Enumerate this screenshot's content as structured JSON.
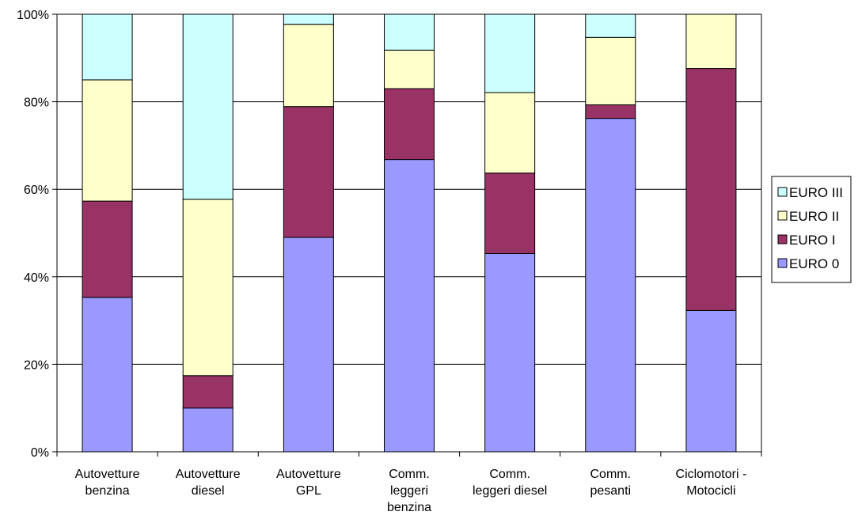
{
  "chart_data": {
    "type": "bar",
    "stacked": true,
    "percent": true,
    "categories": [
      [
        "Autovetture",
        "benzina"
      ],
      [
        "Autovetture",
        "diesel"
      ],
      [
        "Autovetture",
        "GPL"
      ],
      [
        "Comm.",
        "leggeri",
        "benzina"
      ],
      [
        "Comm.",
        "leggeri diesel"
      ],
      [
        "Comm.",
        "pesanti"
      ],
      [
        "Ciclomotori -",
        "Motocicli"
      ]
    ],
    "series": [
      {
        "name": "EURO 0",
        "color": "#9999ff",
        "values": [
          35.3,
          10.0,
          49.0,
          66.8,
          45.3,
          76.2,
          32.3
        ]
      },
      {
        "name": "EURO I",
        "color": "#993366",
        "values": [
          22.0,
          7.4,
          29.9,
          16.2,
          18.4,
          3.1,
          55.3
        ]
      },
      {
        "name": "EURO II",
        "color": "#ffffcc",
        "values": [
          27.7,
          40.3,
          18.8,
          8.8,
          18.4,
          15.4,
          12.4
        ]
      },
      {
        "name": "EURO III",
        "color": "#ccffff",
        "values": [
          15.0,
          42.3,
          2.3,
          8.2,
          17.9,
          5.3,
          0.0
        ]
      }
    ],
    "y_ticks": [
      "0%",
      "20%",
      "40%",
      "60%",
      "80%",
      "100%"
    ],
    "ylim": [
      0,
      100
    ],
    "grid": true,
    "legend_position": "right",
    "legend_order": [
      "EURO III",
      "EURO II",
      "EURO I",
      "EURO 0"
    ]
  }
}
